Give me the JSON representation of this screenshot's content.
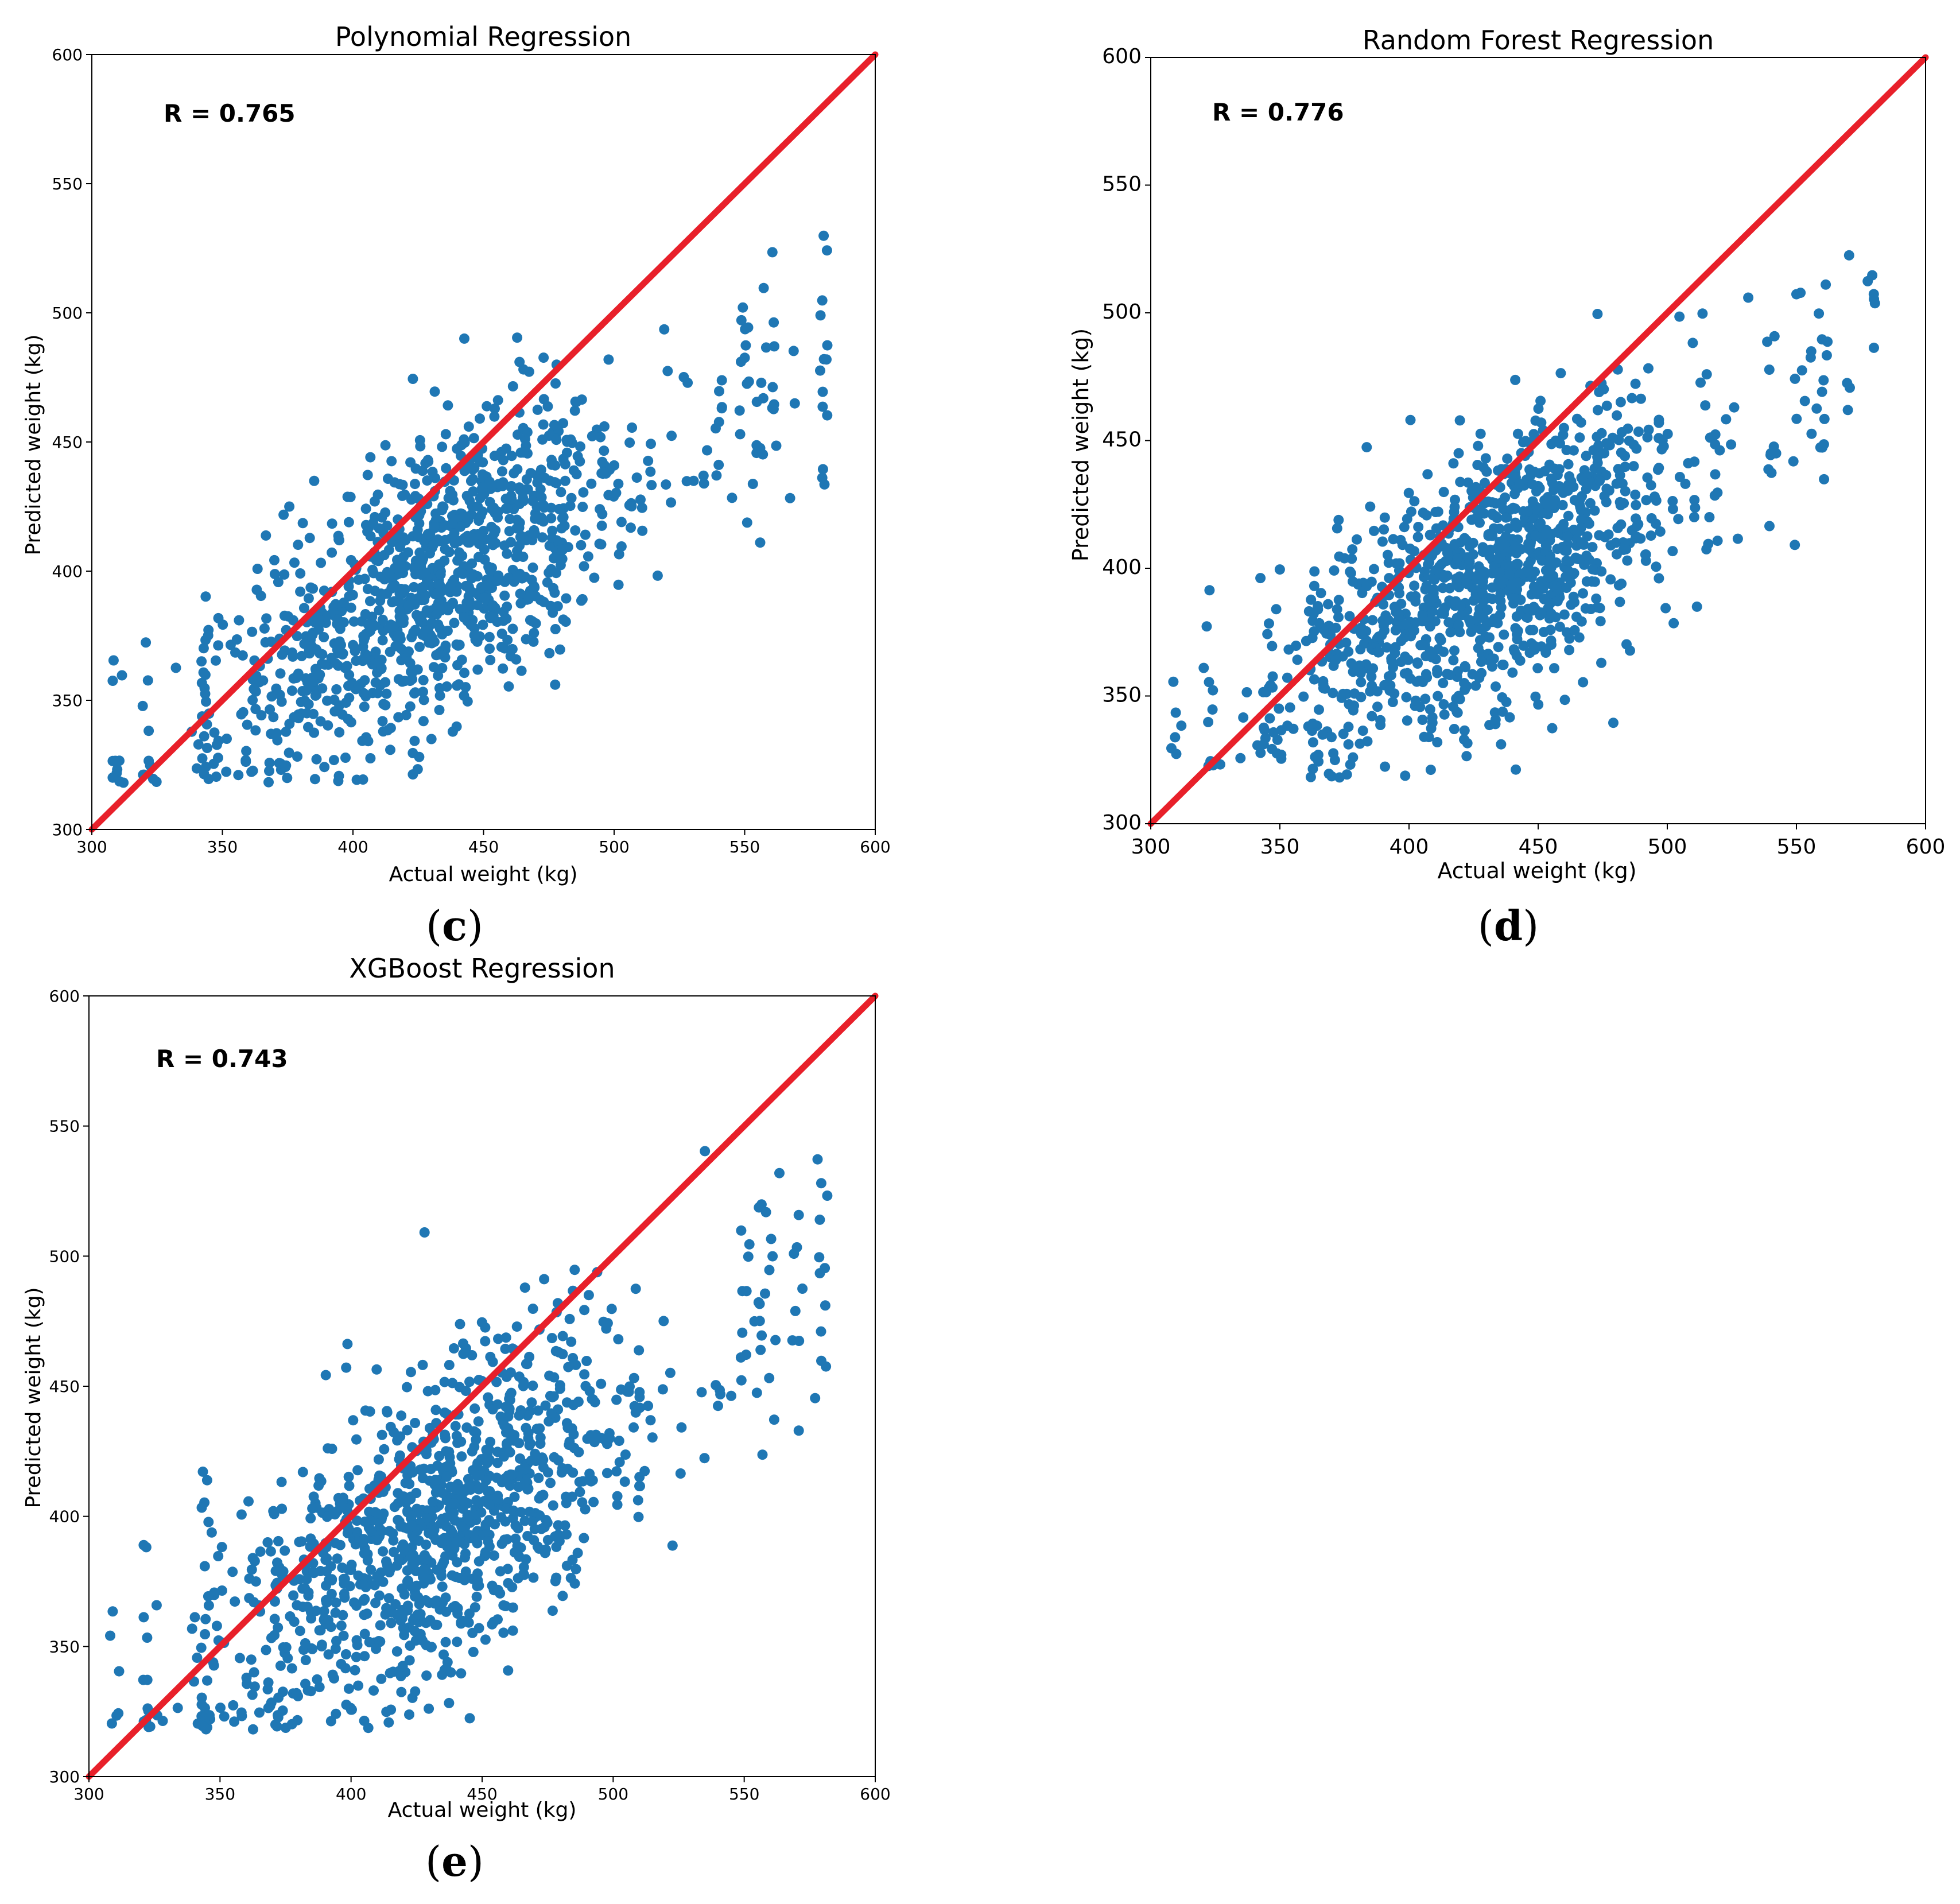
{
  "chart_data": [
    {
      "type": "scatter",
      "panel": "c",
      "title": "Polynomial Regression",
      "xlabel": "Actual weight (kg)",
      "ylabel": "Predicted weight (kg)",
      "xlim": [
        300,
        600
      ],
      "ylim": [
        300,
        600
      ],
      "xticks": [
        "300",
        "350",
        "400",
        "450",
        "500",
        "550",
        "600"
      ],
      "yticks": [
        "300",
        "350",
        "400",
        "450",
        "500",
        "550",
        "600"
      ],
      "annotation": "R = 0.765",
      "sublabel": "c",
      "reference_line": {
        "from": [
          300,
          300
        ],
        "to": [
          600,
          600
        ],
        "color": "#e8202a"
      },
      "point_color": "#1f77b4",
      "r": 0.765,
      "seed": 765
    },
    {
      "type": "scatter",
      "panel": "d",
      "title": "Random Forest Regression",
      "xlabel": "Actual weight (kg)",
      "ylabel": "Predicted weight (kg)",
      "xlim": [
        300,
        600
      ],
      "ylim": [
        300,
        600
      ],
      "xticks": [
        "300",
        "350",
        "400",
        "450",
        "500",
        "550",
        "600"
      ],
      "yticks": [
        "300",
        "350",
        "400",
        "450",
        "500",
        "550",
        "600"
      ],
      "annotation": "R = 0.776",
      "sublabel": "d",
      "reference_line": {
        "from": [
          300,
          300
        ],
        "to": [
          600,
          600
        ],
        "color": "#e8202a"
      },
      "point_color": "#1f77b4",
      "r": 0.776,
      "seed": 776
    },
    {
      "type": "scatter",
      "panel": "e",
      "title": "XGBoost Regression",
      "xlabel": "Actual weight (kg)",
      "ylabel": "Predicted weight (kg)",
      "xlim": [
        300,
        600
      ],
      "ylim": [
        300,
        600
      ],
      "xticks": [
        "300",
        "350",
        "400",
        "450",
        "500",
        "550",
        "600"
      ],
      "yticks": [
        "300",
        "350",
        "400",
        "450",
        "500",
        "550",
        "600"
      ],
      "annotation": "R = 0.743",
      "sublabel": "e",
      "reference_line": {
        "from": [
          300,
          300
        ],
        "to": [
          600,
          600
        ],
        "color": "#e8202a"
      },
      "point_color": "#1f77b4",
      "r": 0.743,
      "seed": 743
    }
  ]
}
